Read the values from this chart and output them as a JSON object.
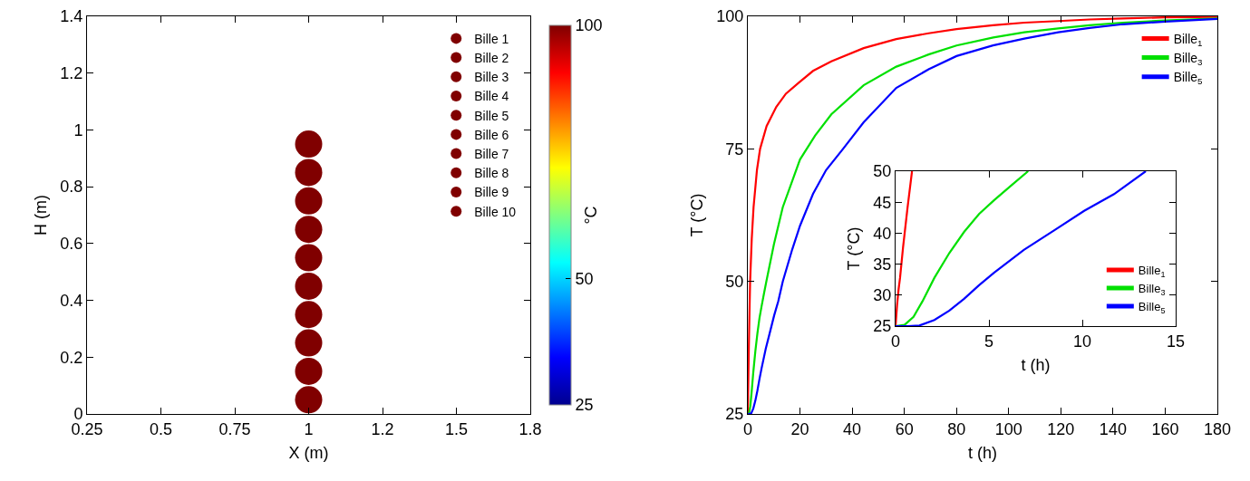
{
  "chart_data": [
    {
      "type": "scatter",
      "xlabel": "X (m)",
      "ylabel": "H (m)",
      "clabel": "°C",
      "legend": "top right",
      "marker": "circle",
      "grid": false,
      "xlim": [
        0.25,
        1.75
      ],
      "xticks": [
        0.25,
        0.5,
        0.75,
        1,
        {
          "value": 1.25,
          "label": "1.2"
        },
        1.5,
        {
          "value": 1.75,
          "label": "1.8"
        }
      ],
      "ylim": [
        0,
        1.4
      ],
      "yticks": [
        0,
        0.2,
        0.4,
        0.6,
        0.8,
        1,
        1.2,
        1.4
      ],
      "clim": [
        25,
        100
      ],
      "cticks": [
        25,
        50,
        100
      ],
      "series": [
        {
          "name": "Bille 1",
          "x": [
            1
          ],
          "values": [
            0.95
          ],
          "cvalues": [
            100
          ]
        },
        {
          "name": "Bille 2",
          "x": [
            1
          ],
          "values": [
            0.85
          ],
          "cvalues": [
            100
          ]
        },
        {
          "name": "Bille 3",
          "x": [
            1
          ],
          "values": [
            0.75
          ],
          "cvalues": [
            100
          ]
        },
        {
          "name": "Bille 4",
          "x": [
            1
          ],
          "values": [
            0.65
          ],
          "cvalues": [
            100
          ]
        },
        {
          "name": "Bille 5",
          "x": [
            1
          ],
          "values": [
            0.55
          ],
          "cvalues": [
            100
          ]
        },
        {
          "name": "Bille 6",
          "x": [
            1
          ],
          "values": [
            0.45
          ],
          "cvalues": [
            100
          ]
        },
        {
          "name": "Bille 7",
          "x": [
            1
          ],
          "values": [
            0.35
          ],
          "cvalues": [
            100
          ]
        },
        {
          "name": "Bille 8",
          "x": [
            1
          ],
          "values": [
            0.25
          ],
          "cvalues": [
            100
          ]
        },
        {
          "name": "Bille 9",
          "x": [
            1
          ],
          "values": [
            0.15
          ],
          "cvalues": [
            100
          ]
        },
        {
          "name": "Bille 10",
          "x": [
            1
          ],
          "values": [
            0.05
          ],
          "cvalues": [
            100
          ]
        }
      ]
    },
    {
      "type": "line",
      "xlabel": "t (h)",
      "ylabel": "T (°C)",
      "legend": "top right",
      "grid": false,
      "xlim": [
        0,
        180
      ],
      "xticks": [
        0,
        20,
        40,
        60,
        80,
        100,
        120,
        140,
        160,
        180
      ],
      "ylim": [
        25,
        100
      ],
      "yticks": [
        25,
        50,
        75,
        100
      ],
      "series": [
        {
          "name": "Bille$_{1}$",
          "color": "#ff0000",
          "x": [
            0,
            0.24,
            0.4,
            0.64,
            0.88,
            1.5,
            2.2,
            3.5,
            4.7,
            7.2,
            10.9,
            14.6,
            19.6,
            25,
            32,
            44.4,
            56.9,
            69.3,
            80,
            94,
            106,
            119,
            131,
            143.7,
            160,
            180
          ],
          "values": [
            25,
            32.8,
            37.7,
            44.1,
            50,
            58,
            64,
            71,
            75,
            79.3,
            82.9,
            85.4,
            87.5,
            89.7,
            91.5,
            94,
            95.7,
            96.8,
            97.6,
            98.3,
            98.8,
            99.1,
            99.4,
            99.6,
            99.8,
            99.9
          ]
        },
        {
          "name": "Bille$_{3}$",
          "color": "#00e000",
          "x": [
            0,
            0.48,
            0.96,
            1.44,
            2.08,
            2.88,
            3.67,
            4.47,
            5.27,
            6.23,
            7.1,
            10,
            13.4,
            20,
            25.8,
            32,
            44.4,
            56.9,
            69.3,
            80,
            94.1,
            106,
            119,
            131,
            143.7,
            160,
            180
          ],
          "values": [
            25,
            25.2,
            26.5,
            29,
            32.8,
            36.8,
            40.2,
            43.1,
            45.3,
            47.8,
            50,
            57,
            64,
            73,
            77.5,
            81.5,
            87,
            90.5,
            92.8,
            94.5,
            96,
            97,
            97.7,
            98.3,
            98.8,
            99.2,
            99.6
          ]
        },
        {
          "name": "Bille$_{5}$",
          "color": "#0000ff",
          "x": [
            0,
            1.28,
            2.08,
            2.88,
            3.67,
            4.47,
            5.27,
            6.87,
            8.47,
            10.1,
            11.7,
            13.4,
            17,
            20,
            25,
            30,
            36.5,
            44.4,
            56.9,
            69.3,
            80,
            94,
            106,
            119,
            131,
            143.7,
            160,
            180
          ],
          "values": [
            25,
            25.1,
            26,
            27.5,
            29.4,
            31.6,
            33.6,
            37.3,
            40.4,
            43.6,
            46.3,
            50,
            56,
            60.5,
            66.5,
            71,
            75,
            80,
            86.5,
            90,
            92.5,
            94.5,
            95.8,
            97,
            97.8,
            98.5,
            99,
            99.5
          ]
        }
      ]
    },
    {
      "type": "line",
      "xlabel": "t (h)",
      "ylabel": "T (°C)",
      "legend": "bottom right",
      "grid": false,
      "xlim": [
        0,
        15
      ],
      "xticks": [
        0,
        5,
        10,
        15
      ],
      "ylim": [
        25,
        50
      ],
      "yticks": [
        25,
        30,
        35,
        40,
        45,
        50
      ],
      "series": [
        {
          "name": "Bille$_{1}$",
          "color": "#ff0000",
          "x": [
            0,
            0.08,
            0.16,
            0.24,
            0.4,
            0.64,
            0.88
          ],
          "values": [
            25,
            28.4,
            30.9,
            32.8,
            37.7,
            44.1,
            50
          ]
        },
        {
          "name": "Bille$_{3}$",
          "color": "#00e000",
          "x": [
            0,
            0.48,
            0.96,
            1.44,
            2.08,
            2.88,
            3.67,
            4.47,
            5.27,
            6.23,
            7.1
          ],
          "values": [
            25,
            25.2,
            26.5,
            29,
            32.8,
            36.8,
            40.2,
            43.1,
            45.3,
            47.8,
            50
          ]
        },
        {
          "name": "Bille$_{5}$",
          "color": "#0000ff",
          "x": [
            0,
            0.64,
            1.28,
            2.08,
            2.88,
            3.67,
            4.47,
            5.27,
            6.87,
            8.47,
            10.1,
            11.7,
            13.4
          ],
          "values": [
            25,
            25,
            25.1,
            26,
            27.5,
            29.4,
            31.6,
            33.6,
            37.3,
            40.4,
            43.6,
            46.3,
            50
          ]
        }
      ]
    }
  ]
}
